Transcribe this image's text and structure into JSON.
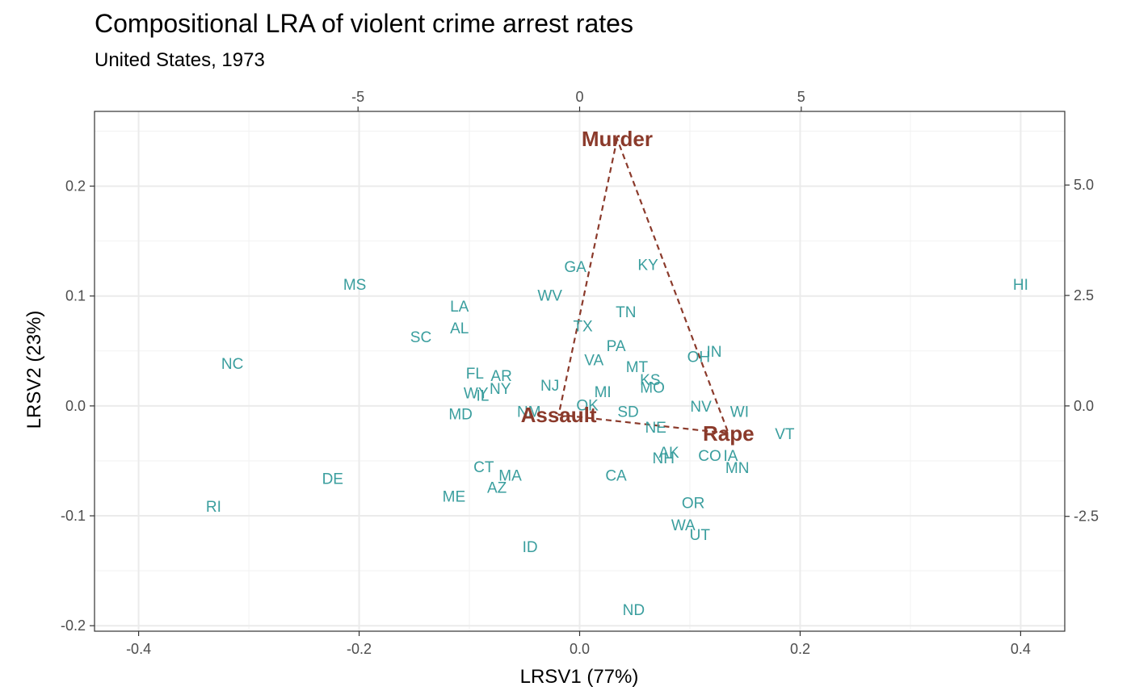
{
  "chart_data": {
    "type": "scatter",
    "title": "Compositional LRA of violent crime arrest rates",
    "subtitle": "United States, 1973",
    "xlabel": "LRSV1 (77%)",
    "ylabel": "LRSV2 (23%)",
    "xlim": [
      -0.44,
      0.44
    ],
    "ylim": [
      -0.205,
      0.268
    ],
    "x_ticks": [
      "-0.4",
      "-0.2",
      "0.0",
      "0.2",
      "0.4"
    ],
    "x_tick_values": [
      -0.4,
      -0.2,
      0.0,
      0.2,
      0.4
    ],
    "y_ticks": [
      "-0.2",
      "-0.1",
      "0.0",
      "0.1",
      "0.2"
    ],
    "y_tick_values": [
      -0.2,
      -0.1,
      0.0,
      0.1,
      0.2
    ],
    "x2_ticks": [
      "-5",
      "0",
      "5"
    ],
    "x2_tick_values": [
      -5,
      0,
      5
    ],
    "y2_ticks": [
      "-2.5",
      "0.0",
      "2.5",
      "5.0"
    ],
    "y2_tick_values": [
      -2.5,
      0.0,
      2.5,
      5.0
    ],
    "secondary_scale": 0.0402,
    "grid": true,
    "point_color": "#3a9e9e",
    "variable_color": "#8b3a2b",
    "points": [
      {
        "label": "HI",
        "x": 0.4,
        "y": 0.111
      },
      {
        "label": "NC",
        "x": -0.315,
        "y": 0.039
      },
      {
        "label": "RI",
        "x": -0.332,
        "y": -0.091
      },
      {
        "label": "MS",
        "x": -0.204,
        "y": 0.111
      },
      {
        "label": "DE",
        "x": -0.224,
        "y": -0.066
      },
      {
        "label": "SC",
        "x": -0.144,
        "y": 0.063
      },
      {
        "label": "LA",
        "x": -0.109,
        "y": 0.091
      },
      {
        "label": "AL",
        "x": -0.109,
        "y": 0.071
      },
      {
        "label": "FL",
        "x": -0.095,
        "y": 0.03
      },
      {
        "label": "AR",
        "x": -0.071,
        "y": 0.028
      },
      {
        "label": "NY",
        "x": -0.072,
        "y": 0.016
      },
      {
        "label": "WY",
        "x": -0.094,
        "y": 0.012
      },
      {
        "label": "IL",
        "x": -0.088,
        "y": 0.01
      },
      {
        "label": "MD",
        "x": -0.108,
        "y": -0.007
      },
      {
        "label": "CT",
        "x": -0.087,
        "y": -0.055
      },
      {
        "label": "MA",
        "x": -0.063,
        "y": -0.063
      },
      {
        "label": "AZ",
        "x": -0.075,
        "y": -0.074
      },
      {
        "label": "ME",
        "x": -0.114,
        "y": -0.082
      },
      {
        "label": "ID",
        "x": -0.045,
        "y": -0.128
      },
      {
        "label": "NM",
        "x": -0.046,
        "y": -0.005
      },
      {
        "label": "NJ",
        "x": -0.027,
        "y": 0.019
      },
      {
        "label": "GA",
        "x": -0.004,
        "y": 0.127
      },
      {
        "label": "WV",
        "x": -0.027,
        "y": 0.101
      },
      {
        "label": "TX",
        "x": 0.003,
        "y": 0.073
      },
      {
        "label": "VA",
        "x": 0.013,
        "y": 0.042
      },
      {
        "label": "OK",
        "x": 0.007,
        "y": 0.001
      },
      {
        "label": "MI",
        "x": 0.021,
        "y": 0.013
      },
      {
        "label": "PA",
        "x": 0.033,
        "y": 0.055
      },
      {
        "label": "TN",
        "x": 0.042,
        "y": 0.086
      },
      {
        "label": "KY",
        "x": 0.062,
        "y": 0.129
      },
      {
        "label": "MT",
        "x": 0.052,
        "y": 0.036
      },
      {
        "label": "KS",
        "x": 0.064,
        "y": 0.024
      },
      {
        "label": "MO",
        "x": 0.066,
        "y": 0.017
      },
      {
        "label": "SD",
        "x": 0.044,
        "y": -0.005
      },
      {
        "label": "NE",
        "x": 0.069,
        "y": -0.019
      },
      {
        "label": "CA",
        "x": 0.033,
        "y": -0.063
      },
      {
        "label": "AK",
        "x": 0.081,
        "y": -0.042
      },
      {
        "label": "NH",
        "x": 0.076,
        "y": -0.047
      },
      {
        "label": "ND",
        "x": 0.049,
        "y": -0.185
      },
      {
        "label": "OR",
        "x": 0.103,
        "y": -0.088
      },
      {
        "label": "WA",
        "x": 0.094,
        "y": -0.108
      },
      {
        "label": "UT",
        "x": 0.109,
        "y": -0.117
      },
      {
        "label": "CO",
        "x": 0.118,
        "y": -0.045
      },
      {
        "label": "IA",
        "x": 0.137,
        "y": -0.045
      },
      {
        "label": "MN",
        "x": 0.143,
        "y": -0.056
      },
      {
        "label": "NV",
        "x": 0.11,
        "y": 0.0
      },
      {
        "label": "WI",
        "x": 0.145,
        "y": -0.005
      },
      {
        "label": "OH",
        "x": 0.108,
        "y": 0.045
      },
      {
        "label": "IN",
        "x": 0.122,
        "y": 0.05
      },
      {
        "label": "VT",
        "x": 0.186,
        "y": -0.025
      }
    ],
    "variables": [
      {
        "label": "Murder",
        "x": 0.034,
        "y": 0.243
      },
      {
        "label": "Assault",
        "x": -0.019,
        "y": -0.008
      },
      {
        "label": "Rape",
        "x": 0.135,
        "y": -0.025
      }
    ]
  }
}
